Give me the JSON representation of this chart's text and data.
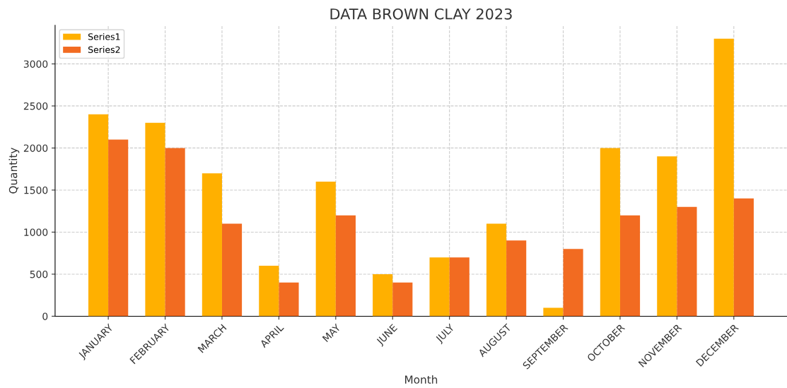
{
  "chart_data": {
    "type": "bar",
    "title": "DATA BROWN CLAY 2023",
    "xlabel": "Month",
    "ylabel": "Quantity",
    "categories": [
      "JANUARY",
      "FEBRUARY",
      "MARCH",
      "APRIL",
      "MAY",
      "JUNE",
      "JULY",
      "AUGUST",
      "SEPTEMBER",
      "OCTOBER",
      "NOVEMBER",
      "DECEMBER"
    ],
    "series": [
      {
        "name": "Series1",
        "color": "#ffb000",
        "values": [
          2400,
          2300,
          1700,
          600,
          1600,
          500,
          700,
          1100,
          100,
          2000,
          1900,
          3300
        ]
      },
      {
        "name": "Series2",
        "color": "#f26b21",
        "values": [
          2100,
          2000,
          1100,
          400,
          1200,
          400,
          700,
          900,
          800,
          1200,
          1300,
          1400
        ]
      }
    ],
    "ylim": [
      0,
      3460
    ],
    "yticks": [
      0,
      500,
      1000,
      1500,
      2000,
      2500,
      3000
    ],
    "grid": true,
    "legend": "top left"
  }
}
